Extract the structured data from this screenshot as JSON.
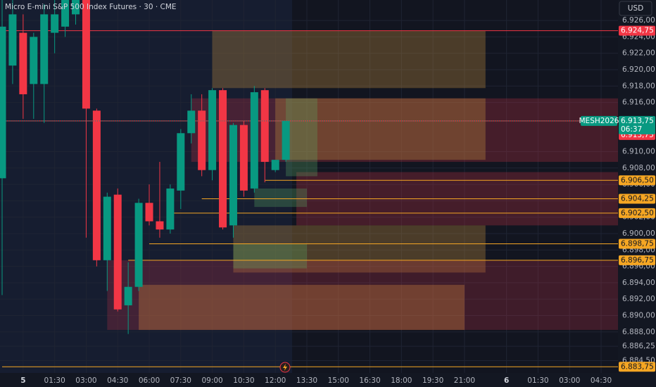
{
  "chart_data": {
    "type": "candlestick",
    "title": "Micro E-mini S&P 500 Index Futures · 30 · CME",
    "currency": "USD",
    "categories": [
      null,
      null,
      "5",
      null,
      null,
      "01:30",
      null,
      null,
      "03:00",
      null,
      null,
      "04:30",
      null,
      null,
      "06:00",
      null,
      null,
      "07:30",
      null,
      null,
      "09:00",
      null,
      null,
      "10:30",
      null,
      null,
      "12:00",
      null,
      null,
      "13:30",
      null,
      null,
      "15:00",
      null,
      null,
      "16:30",
      null,
      null,
      "18:00",
      null,
      null,
      "19:30",
      null,
      null,
      "21:00",
      null,
      null,
      null,
      "6",
      null,
      null,
      "01:30",
      null,
      null,
      "03:00",
      null,
      null,
      "04:30",
      null,
      null
    ],
    "open": [
      6906.75,
      6920.5,
      6924.5,
      6918.25,
      6918.25,
      6924.5,
      6925.25,
      6926.75,
      6928.5,
      6915,
      6896.75,
      6904.75,
      6891.25,
      6893.5,
      6903.75,
      6901.5,
      6900.5,
      6905.25,
      6912.25,
      6915,
      6907.75,
      6917.5,
      6901,
      6913.25,
      6905.5,
      6917.5,
      6907.75,
      6909,
      null,
      null,
      null,
      null,
      null,
      null,
      null,
      null,
      null,
      null,
      null,
      null,
      null,
      null,
      null,
      null,
      null,
      null,
      null,
      null,
      null,
      null,
      null,
      null,
      null,
      null,
      null,
      null,
      null,
      null,
      null,
      null
    ],
    "high": [
      6928.5,
      6928.5,
      6926.75,
      6924.5,
      6928,
      6928.5,
      6928.5,
      6928.5,
      6928.5,
      6915.25,
      6905,
      6905.5,
      6896.5,
      6904.25,
      6906,
      6908.75,
      6906,
      6912.75,
      6917,
      6917,
      6917.75,
      6917.75,
      6913.5,
      6913.75,
      6918,
      6917.75,
      6909,
      6913.75,
      null,
      null,
      null,
      null,
      null,
      null,
      null,
      null,
      null,
      null,
      null,
      null,
      null,
      null,
      null,
      null,
      null,
      null,
      null,
      null,
      null,
      null,
      null,
      null,
      null,
      null,
      null,
      null,
      null,
      null,
      null,
      null
    ],
    "low": [
      6892.5,
      6918.25,
      6914,
      6914,
      6913.5,
      6922,
      6924,
      6925.5,
      6899.5,
      6896,
      6893,
      6890.5,
      6887.75,
      6893,
      6901,
      6899.5,
      6900,
      6903,
      6911,
      6907,
      6906.5,
      6900.5,
      6899.5,
      6904.5,
      6905,
      6906.25,
      6907.5,
      6908.75,
      null,
      null,
      null,
      null,
      null,
      null,
      null,
      null,
      null,
      null,
      null,
      null,
      null,
      null,
      null,
      null,
      null,
      null,
      null,
      null,
      null,
      null,
      null,
      null,
      null,
      null,
      null,
      null,
      null,
      null,
      null,
      null
    ],
    "close": [
      6925.25,
      6926.75,
      6917,
      6924,
      6926.75,
      6926.75,
      6928.5,
      6928.5,
      6915.25,
      6896.75,
      6904.5,
      6890.75,
      6893.5,
      6903.75,
      6901.5,
      6900.5,
      6905.5,
      6912.25,
      6915,
      6907.75,
      6917.5,
      6900.75,
      6913.25,
      6905.25,
      6917.25,
      6908.75,
      6909,
      6913.75,
      null,
      null,
      null,
      null,
      null,
      null,
      null,
      null,
      null,
      null,
      null,
      null,
      null,
      null,
      null,
      null,
      null,
      null,
      null,
      null,
      null,
      null,
      null,
      null,
      null,
      null,
      null,
      null,
      null,
      null,
      null,
      null
    ],
    "up_color": "#089981",
    "down_color": "#f23645",
    "ylim": [
      6883,
      6928.5
    ],
    "yticks": [
      {
        "value": 6926,
        "label": "6.926,00"
      },
      {
        "value": 6924,
        "label": "6.924,00"
      },
      {
        "value": 6922,
        "label": "6.922,00"
      },
      {
        "value": 6920,
        "label": "6.920,00"
      },
      {
        "value": 6918,
        "label": "6.918,00"
      },
      {
        "value": 6916,
        "label": "6.916,00"
      },
      {
        "value": 6910,
        "label": "6.910,00"
      },
      {
        "value": 6908,
        "label": "6.908,00"
      },
      {
        "value": 6906,
        "label": "6.906,00"
      },
      {
        "value": 6904,
        "label": "6.904,00"
      },
      {
        "value": 6902,
        "label": "6.902,00"
      },
      {
        "value": 6900,
        "label": "6.900,00"
      },
      {
        "value": 6898,
        "label": "6.898,00"
      },
      {
        "value": 6896,
        "label": "6.896,00"
      },
      {
        "value": 6894,
        "label": "6.894,00"
      },
      {
        "value": 6892,
        "label": "6.892,00"
      },
      {
        "value": 6890,
        "label": "6.890,00"
      },
      {
        "value": 6888,
        "label": "6.888,00"
      },
      {
        "value": 6886.25,
        "label": "6.886,25"
      },
      {
        "value": 6884.5,
        "label": "6.884,50"
      }
    ],
    "grid": true,
    "zones": [
      {
        "top": 6924.75,
        "bottom": 6917.75,
        "from": 20,
        "to": 46,
        "color": "rgba(190,140,60,0.33)"
      },
      {
        "top": 6916.5,
        "bottom": 6908.75,
        "from": 18,
        "to": 59,
        "color": "rgba(200,50,70,0.28)"
      },
      {
        "top": 6916.5,
        "bottom": 6909,
        "from": 26,
        "to": 46,
        "color": "rgba(190,140,60,0.35)"
      },
      {
        "top": 6907.5,
        "bottom": 6901,
        "from": 28,
        "to": 59,
        "color": "rgba(200,50,70,0.28)"
      },
      {
        "top": 6901,
        "bottom": 6895.25,
        "from": 22,
        "to": 46,
        "color": "rgba(190,140,60,0.33)"
      },
      {
        "top": 6896.75,
        "bottom": 6888.25,
        "from": 10,
        "to": 59,
        "color": "rgba(200,50,70,0.25)"
      },
      {
        "top": 6893.75,
        "bottom": 6888.25,
        "from": 13,
        "to": 44,
        "color": "rgba(190,120,60,0.4)"
      },
      {
        "top": 6905.5,
        "bottom": 6903.25,
        "from": 24,
        "to": 29,
        "color": "rgba(90,170,100,0.3)"
      },
      {
        "top": 6898.75,
        "bottom": 6895.75,
        "from": 22,
        "to": 29,
        "color": "rgba(90,170,100,0.3)"
      },
      {
        "top": 6916.5,
        "bottom": 6907,
        "from": 27,
        "to": 30,
        "color": "rgba(90,170,100,0.3)"
      }
    ],
    "levels": [
      {
        "value": 6924.75,
        "label": "6.924,75",
        "color": "#f23645",
        "from": 0
      },
      {
        "value": 6913.75,
        "label": "6.913,75",
        "color": "#f23645",
        "from": 0
      },
      {
        "value": 6906.5,
        "label": "6.906,50",
        "color": "#f5a623",
        "from": 25
      },
      {
        "value": 6904.25,
        "label": "6.904,25",
        "color": "#f5a623",
        "from": 19
      },
      {
        "value": 6902.5,
        "label": "6.902,50",
        "color": "#f5a623",
        "from": 16
      },
      {
        "value": 6898.75,
        "label": "6.898,75",
        "color": "#f5a623",
        "from": 14
      },
      {
        "value": 6896.75,
        "label": "6.896,75",
        "color": "#f5a623",
        "from": 12
      },
      {
        "value": 6883.75,
        "label": "6.883,75",
        "color": "#f5a623",
        "from": 0
      }
    ],
    "last_price": {
      "value": 6913.75,
      "label": "6.913,75",
      "symbol": "MESH2026",
      "countdown": "06:37",
      "color": "#089981"
    }
  }
}
